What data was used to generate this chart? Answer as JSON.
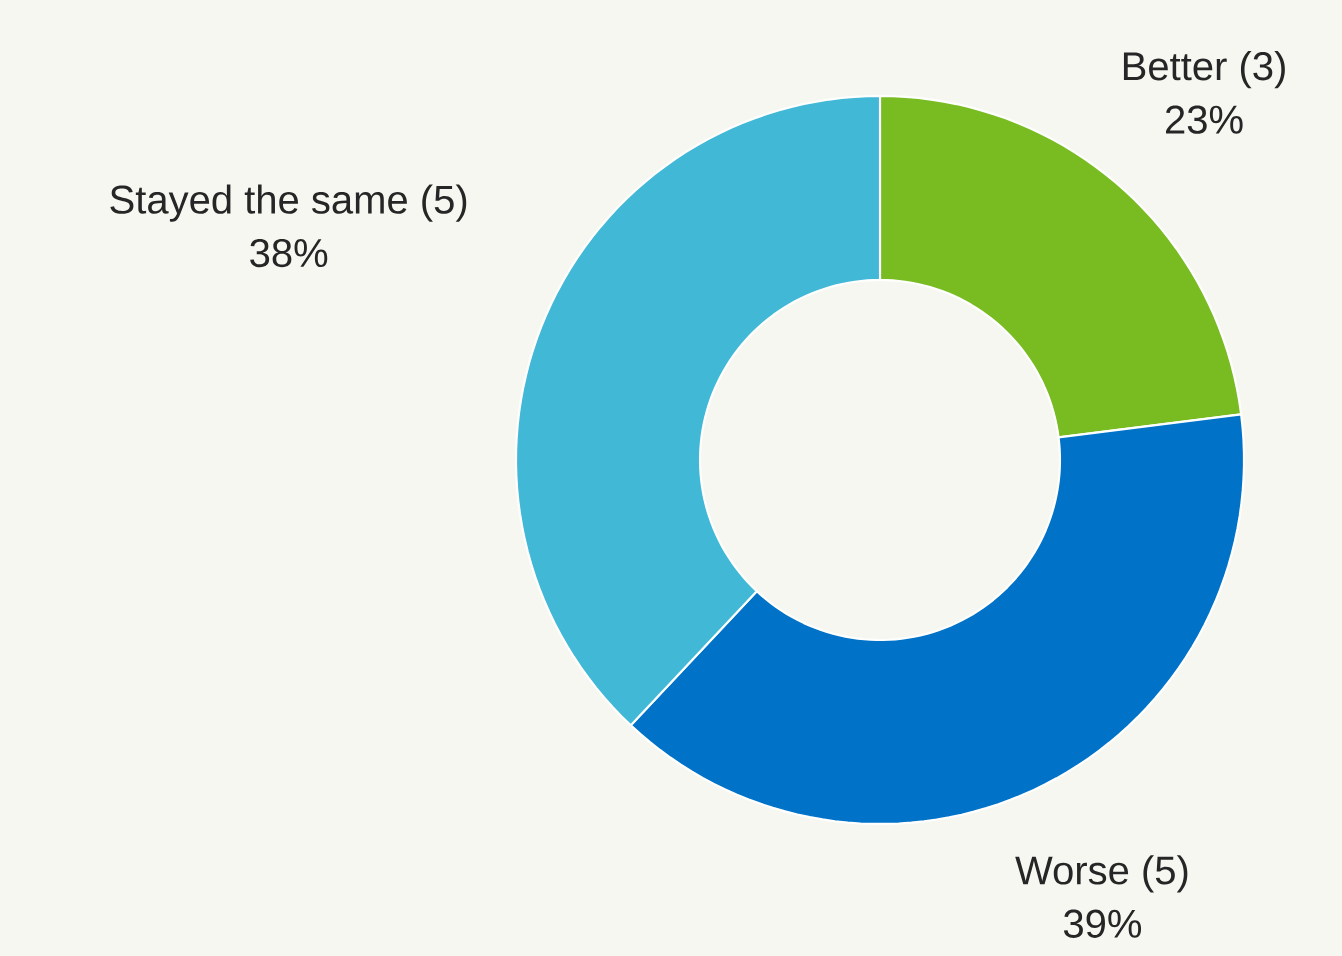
{
  "chart_data": {
    "type": "donut",
    "categories": [
      "Better (3)",
      "Worse (5)",
      "Stayed the same (5)"
    ],
    "values": [
      23,
      39,
      38
    ],
    "value_labels": [
      "23%",
      "39%",
      "38%"
    ],
    "colors": [
      "#78bc21",
      "#0073c8",
      "#42b8d7"
    ]
  }
}
